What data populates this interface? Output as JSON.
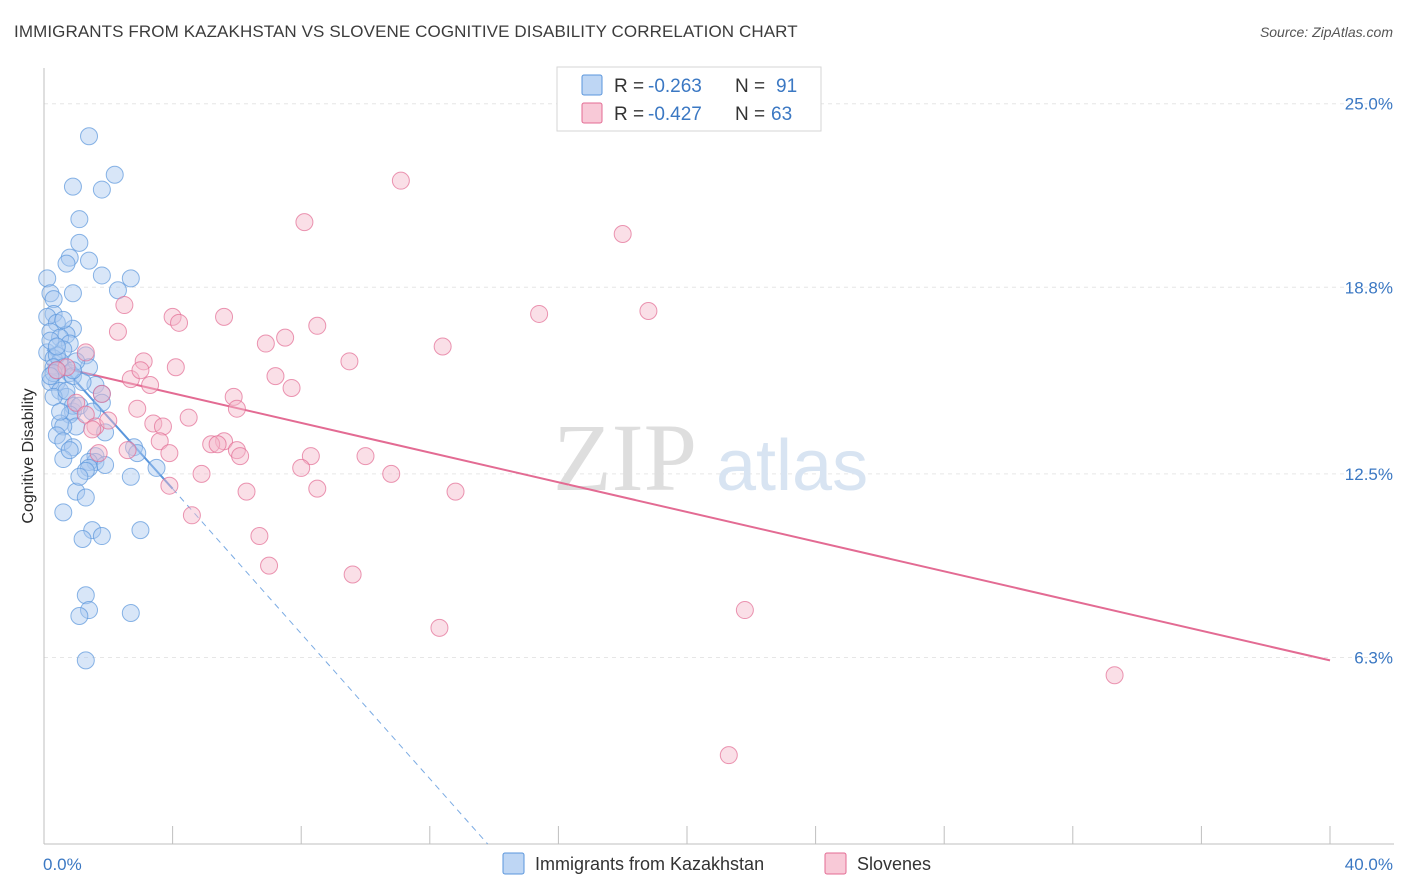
{
  "title": "IMMIGRANTS FROM KAZAKHSTAN VS SLOVENE COGNITIVE DISABILITY CORRELATION CHART",
  "source": "Source: ZipAtlas.com",
  "watermark": {
    "zip": "ZIP",
    "atlas": "atlas"
  },
  "legend_top": [
    {
      "r_label": "R = ",
      "r_value": "-0.263",
      "n_label": "N = ",
      "n_value": "91",
      "color": "#a8c8f0"
    },
    {
      "r_label": "R = ",
      "r_value": "-0.427",
      "n_label": "N = ",
      "n_value": "63",
      "color": "#f5b7c9"
    }
  ],
  "legend_bottom": [
    {
      "label": "Immigrants from Kazakhstan",
      "color": "#a8c8f0"
    },
    {
      "label": "Slovenes",
      "color": "#f5b7c9"
    }
  ],
  "chart_data": {
    "type": "scatter",
    "ylabel": "Cognitive Disability",
    "xlim": [
      0,
      40
    ],
    "ylim": [
      0,
      25.8
    ],
    "x_tick_labels": [
      {
        "value": 0,
        "label": "0.0%"
      },
      {
        "value": 40,
        "label": "40.0%"
      }
    ],
    "y_tick_labels": [
      {
        "value": 25.0,
        "label": "25.0%"
      },
      {
        "value": 18.8,
        "label": "18.8%"
      },
      {
        "value": 12.5,
        "label": "12.5%"
      },
      {
        "value": 6.3,
        "label": "6.3%"
      }
    ],
    "grid": true,
    "series": [
      {
        "name": "Immigrants from Kazakhstan",
        "color": "#5a96dc",
        "fill": "#a8c8f0",
        "points": [
          [
            1.4,
            23.9
          ],
          [
            2.2,
            22.6
          ],
          [
            1.8,
            22.1
          ],
          [
            0.9,
            22.2
          ],
          [
            1.1,
            21.1
          ],
          [
            1.1,
            20.3
          ],
          [
            0.8,
            19.8
          ],
          [
            0.7,
            19.6
          ],
          [
            1.4,
            19.7
          ],
          [
            1.8,
            19.2
          ],
          [
            2.7,
            19.1
          ],
          [
            0.1,
            19.1
          ],
          [
            0.2,
            18.6
          ],
          [
            0.9,
            18.6
          ],
          [
            2.3,
            18.7
          ],
          [
            0.3,
            18.4
          ],
          [
            0.3,
            17.9
          ],
          [
            0.1,
            17.8
          ],
          [
            0.4,
            17.6
          ],
          [
            0.2,
            17.3
          ],
          [
            0.9,
            17.4
          ],
          [
            0.7,
            17.2
          ],
          [
            0.5,
            17.1
          ],
          [
            0.8,
            16.9
          ],
          [
            0.6,
            16.7
          ],
          [
            0.1,
            16.6
          ],
          [
            0.3,
            16.4
          ],
          [
            0.5,
            16.3
          ],
          [
            0.4,
            16.5
          ],
          [
            1.3,
            16.5
          ],
          [
            0.6,
            16.1
          ],
          [
            0.3,
            16.1
          ],
          [
            0.8,
            15.9
          ],
          [
            1.4,
            16.1
          ],
          [
            0.9,
            15.8
          ],
          [
            0.4,
            15.6
          ],
          [
            0.2,
            15.6
          ],
          [
            1.6,
            15.5
          ],
          [
            0.5,
            15.3
          ],
          [
            0.7,
            15.1
          ],
          [
            0.3,
            15.1
          ],
          [
            1.8,
            15.2
          ],
          [
            1.8,
            14.9
          ],
          [
            0.9,
            14.6
          ],
          [
            0.9,
            14.8
          ],
          [
            1.1,
            14.8
          ],
          [
            0.8,
            14.5
          ],
          [
            1.0,
            14.1
          ],
          [
            0.5,
            14.2
          ],
          [
            0.6,
            14.1
          ],
          [
            0.4,
            13.8
          ],
          [
            0.6,
            13.6
          ],
          [
            0.9,
            13.4
          ],
          [
            2.8,
            13.4
          ],
          [
            2.9,
            13.2
          ],
          [
            1.6,
            13.1
          ],
          [
            0.6,
            13.0
          ],
          [
            1.6,
            12.9
          ],
          [
            1.4,
            12.9
          ],
          [
            1.9,
            12.8
          ],
          [
            1.4,
            12.7
          ],
          [
            1.3,
            12.6
          ],
          [
            3.5,
            12.7
          ],
          [
            2.7,
            12.4
          ],
          [
            1.0,
            11.9
          ],
          [
            1.3,
            11.7
          ],
          [
            0.6,
            11.2
          ],
          [
            1.5,
            10.6
          ],
          [
            1.8,
            10.4
          ],
          [
            3.0,
            10.6
          ],
          [
            1.2,
            10.3
          ],
          [
            1.3,
            8.4
          ],
          [
            1.4,
            7.9
          ],
          [
            2.7,
            7.8
          ],
          [
            1.1,
            7.7
          ],
          [
            1.3,
            6.2
          ],
          [
            0.4,
            16.0
          ],
          [
            0.7,
            15.3
          ],
          [
            1.0,
            16.3
          ],
          [
            0.2,
            17.0
          ],
          [
            0.5,
            14.6
          ],
          [
            1.2,
            15.6
          ],
          [
            0.3,
            15.9
          ],
          [
            0.8,
            13.3
          ],
          [
            1.9,
            13.9
          ],
          [
            0.4,
            16.8
          ],
          [
            0.6,
            17.7
          ],
          [
            0.9,
            16.0
          ],
          [
            1.5,
            14.6
          ],
          [
            0.2,
            15.8
          ],
          [
            1.1,
            12.4
          ]
        ],
        "trend": {
          "x": [
            0.1,
            4.0
          ],
          "y": [
            16.7,
            12.0
          ]
        },
        "trend_extension": {
          "x": [
            4.0,
            13.8
          ],
          "y": [
            12.0,
            0.0
          ]
        }
      },
      {
        "name": "Slovenes",
        "color": "#e36b93",
        "fill": "#f5b7c9",
        "points": [
          [
            11.1,
            22.4
          ],
          [
            18.0,
            20.6
          ],
          [
            8.1,
            21.0
          ],
          [
            2.5,
            18.2
          ],
          [
            15.4,
            17.9
          ],
          [
            18.8,
            18.0
          ],
          [
            4.0,
            17.8
          ],
          [
            5.6,
            17.8
          ],
          [
            4.2,
            17.6
          ],
          [
            8.5,
            17.5
          ],
          [
            2.3,
            17.3
          ],
          [
            7.5,
            17.1
          ],
          [
            6.9,
            16.9
          ],
          [
            12.4,
            16.8
          ],
          [
            1.3,
            16.6
          ],
          [
            3.1,
            16.3
          ],
          [
            9.5,
            16.3
          ],
          [
            0.7,
            16.1
          ],
          [
            2.7,
            15.7
          ],
          [
            3.3,
            15.5
          ],
          [
            7.2,
            15.8
          ],
          [
            7.7,
            15.4
          ],
          [
            1.8,
            15.2
          ],
          [
            5.9,
            15.1
          ],
          [
            1.0,
            14.9
          ],
          [
            2.9,
            14.7
          ],
          [
            6.0,
            14.7
          ],
          [
            1.3,
            14.5
          ],
          [
            4.5,
            14.4
          ],
          [
            1.6,
            14.1
          ],
          [
            3.4,
            14.2
          ],
          [
            3.7,
            14.1
          ],
          [
            1.5,
            14.0
          ],
          [
            5.6,
            13.6
          ],
          [
            3.6,
            13.6
          ],
          [
            5.2,
            13.5
          ],
          [
            5.4,
            13.5
          ],
          [
            6.0,
            13.3
          ],
          [
            2.6,
            13.3
          ],
          [
            3.9,
            13.2
          ],
          [
            1.7,
            13.2
          ],
          [
            6.1,
            13.1
          ],
          [
            8.3,
            13.1
          ],
          [
            10.0,
            13.1
          ],
          [
            8.0,
            12.7
          ],
          [
            4.9,
            12.5
          ],
          [
            10.8,
            12.5
          ],
          [
            3.9,
            12.1
          ],
          [
            8.5,
            12.0
          ],
          [
            12.8,
            11.9
          ],
          [
            6.3,
            11.9
          ],
          [
            4.6,
            11.1
          ],
          [
            6.7,
            10.4
          ],
          [
            7.0,
            9.4
          ],
          [
            9.6,
            9.1
          ],
          [
            21.8,
            7.9
          ],
          [
            12.3,
            7.3
          ],
          [
            33.3,
            5.7
          ],
          [
            21.3,
            3.0
          ],
          [
            2.0,
            14.3
          ],
          [
            3.0,
            16.0
          ],
          [
            4.1,
            16.1
          ],
          [
            0.4,
            16.0
          ]
        ],
        "trend": {
          "x": [
            0.1,
            40.0
          ],
          "y": [
            16.2,
            6.2
          ]
        }
      }
    ]
  }
}
